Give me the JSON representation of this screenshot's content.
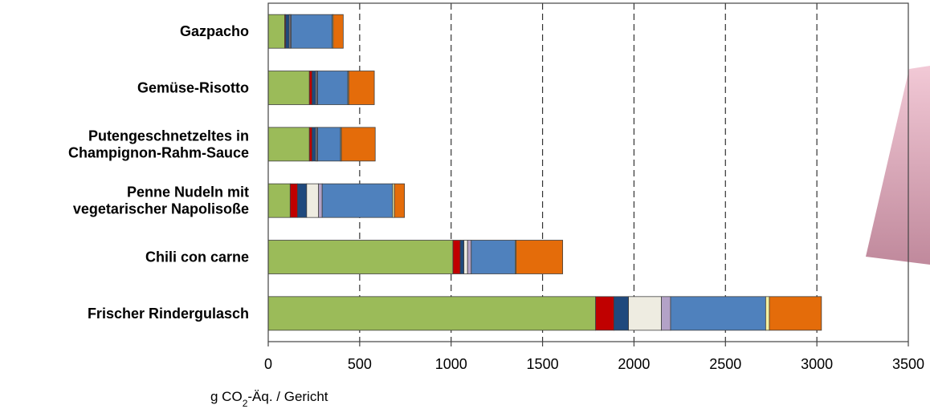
{
  "chart_data": {
    "type": "bar",
    "orientation": "horizontal",
    "stacked": true,
    "categories": [
      [
        "Gazpacho"
      ],
      [
        "Gemüse-Risotto"
      ],
      [
        "Putengeschnetzeltes in",
        "Champignon-Rahm-Sauce"
      ],
      [
        "Penne Nudeln mit",
        "vegetarischer Napolisoße"
      ],
      [
        "Chili con carne"
      ],
      [
        "Frischer Rindergulasch"
      ]
    ],
    "x_axis": {
      "label_prefix": "g CO",
      "label_subscript": "2",
      "label_suffix": "-Äq. / Gericht",
      "min": 0,
      "max": 3500,
      "ticks": [
        0,
        500,
        1000,
        1500,
        2000,
        2500,
        3000,
        3500
      ],
      "grid": "dashed vertical"
    },
    "series_colors": [
      "#9bbb59",
      "#c00000",
      "#1f497d",
      "#eeece1",
      "#b3a2c7",
      "#4f81bd",
      "#f5f0a0",
      "#e46c0a"
    ],
    "segments": [
      [
        90,
        5,
        20,
        5,
        5,
        225,
        5,
        55
      ],
      [
        225,
        15,
        20,
        5,
        5,
        165,
        5,
        140
      ],
      [
        225,
        15,
        20,
        5,
        5,
        125,
        5,
        185
      ],
      [
        120,
        40,
        50,
        65,
        20,
        385,
        10,
        55
      ],
      [
        1010,
        40,
        20,
        20,
        20,
        240,
        5,
        255
      ],
      [
        1790,
        100,
        80,
        180,
        50,
        520,
        20,
        285
      ]
    ],
    "decoration_color": "#d4a3b4"
  }
}
